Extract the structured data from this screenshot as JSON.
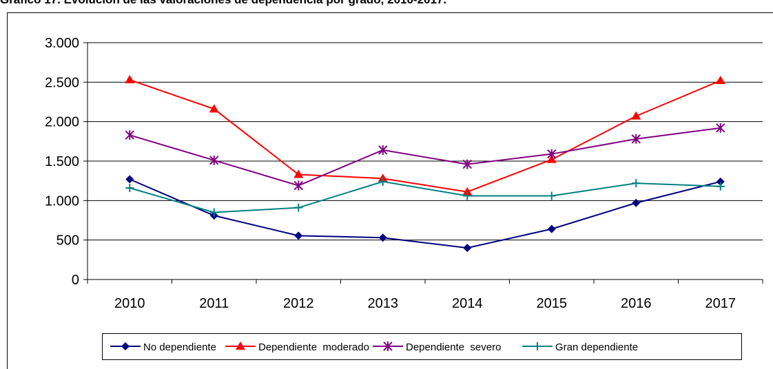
{
  "chart_data": {
    "type": "line",
    "title": "Gráfico 17. Evolución de las valoraciones de dependencia por grado, 2010-2017.",
    "categories": [
      "2010",
      "2011",
      "2012",
      "2013",
      "2014",
      "2015",
      "2016",
      "2017"
    ],
    "ylim": [
      0,
      3000
    ],
    "yticks": [
      0,
      500,
      {
        "value": 1000,
        "label": "1.000"
      },
      {
        "value": 1500,
        "label": "1.500"
      },
      {
        "value": 2000,
        "label": "2.000"
      },
      {
        "value": 2500,
        "label": "2.500"
      },
      {
        "value": 3000,
        "label": "3.000"
      }
    ],
    "grid": true,
    "legend": "bottom",
    "series": [
      {
        "name": "No dependiente",
        "color": "#000080",
        "marker": "diamond",
        "values": [
          1270,
          810,
          555,
          530,
          400,
          640,
          970,
          1240
        ]
      },
      {
        "name": "Dependiente  moderado",
        "color": "#ff0000",
        "marker": "triangle",
        "values": [
          2530,
          2160,
          1330,
          1280,
          1110,
          1520,
          2070,
          2520
        ]
      },
      {
        "name": "Dependiente  severo",
        "color": "#800080",
        "marker": "asterisk",
        "values": [
          1830,
          1510,
          1190,
          1640,
          1460,
          1590,
          1780,
          1920
        ]
      },
      {
        "name": "Gran dependiente",
        "color": "#008080",
        "marker": "plus",
        "values": [
          1160,
          850,
          910,
          1240,
          1060,
          1060,
          1220,
          1180
        ]
      }
    ]
  }
}
